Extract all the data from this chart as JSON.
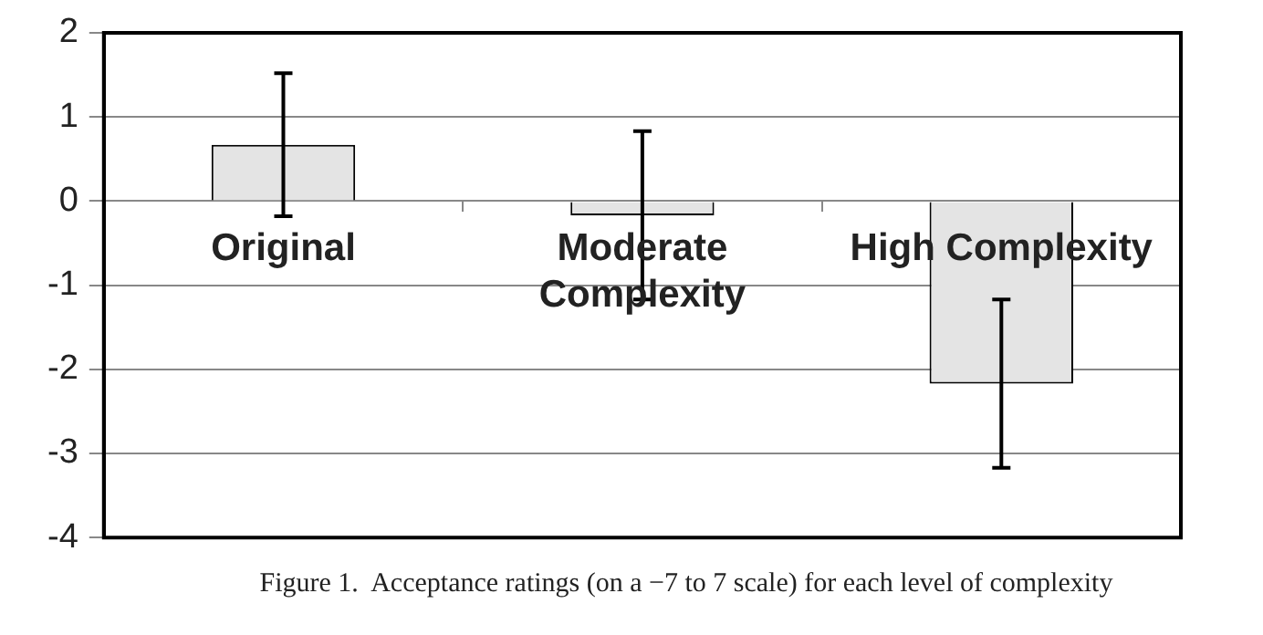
{
  "chart_data": {
    "type": "bar",
    "categories": [
      "Original",
      "Moderate Complexity",
      "High Complexity"
    ],
    "values": [
      0.67,
      -0.17,
      -2.17
    ],
    "errors": [
      0.85,
      1.0,
      1.0
    ],
    "color": "#e4e4e4",
    "ylim": [
      -4,
      2
    ],
    "yticks": [
      -4,
      -3,
      -2,
      -1,
      0,
      1,
      2
    ],
    "grid": "y",
    "legend": false,
    "annotations": [
      "Figure 1.  Acceptance ratings (on a −7 to 7 scale) for each level of complexity"
    ]
  }
}
